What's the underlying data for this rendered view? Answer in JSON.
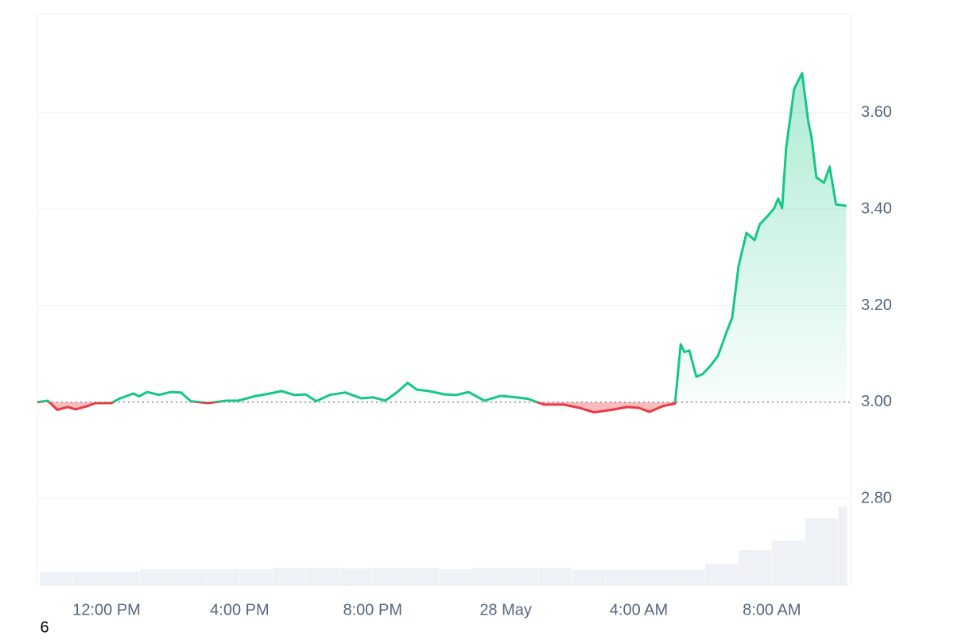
{
  "chart_data": {
    "type": "line",
    "annotation": "6",
    "baseline": 3.0,
    "up_color": "#16c784",
    "down_color": "#ea3943",
    "grid": true,
    "x": [
      -2.08,
      -1.77,
      -1.48,
      -1.17,
      -0.93,
      -0.57,
      -0.33,
      0.14,
      0.38,
      0.81,
      0.98,
      1.22,
      1.58,
      1.93,
      2.24,
      2.53,
      3.05,
      3.6,
      3.96,
      4.44,
      4.92,
      5.27,
      5.63,
      5.99,
      6.3,
      6.71,
      7.18,
      7.66,
      8.02,
      8.38,
      8.74,
      9.05,
      9.33,
      9.69,
      10.17,
      10.53,
      10.88,
      11.36,
      11.84,
      12.32,
      12.67,
      13.15,
      13.75,
      14.22,
      14.65,
      15.18,
      15.66,
      16.01,
      16.32,
      16.73,
      17.09,
      17.26,
      17.37,
      17.52,
      17.73,
      17.92,
      18.16,
      18.38,
      18.64,
      18.81,
      19.0,
      19.24,
      19.48,
      19.64,
      19.88,
      20.07,
      20.19,
      20.31,
      20.43,
      20.67,
      20.91,
      21.1,
      21.19,
      21.34,
      21.57,
      21.74,
      21.93,
      22.24
    ],
    "values": [
      3.0,
      3.003,
      2.984,
      2.99,
      2.985,
      2.992,
      2.998,
      2.998,
      3.007,
      3.018,
      3.012,
      3.021,
      3.015,
      3.021,
      3.02,
      3.002,
      2.998,
      3.003,
      3.003,
      3.012,
      3.018,
      3.023,
      3.015,
      3.016,
      3.002,
      3.015,
      3.02,
      3.008,
      3.01,
      3.003,
      3.021,
      3.04,
      3.026,
      3.023,
      3.016,
      3.015,
      3.021,
      3.003,
      3.013,
      3.01,
      3.007,
      2.995,
      2.995,
      2.988,
      2.979,
      2.984,
      2.99,
      2.988,
      2.98,
      2.992,
      2.997,
      3.12,
      3.104,
      3.107,
      3.053,
      3.058,
      3.076,
      3.096,
      3.145,
      3.175,
      3.282,
      3.351,
      3.336,
      3.369,
      3.386,
      3.402,
      3.422,
      3.402,
      3.526,
      3.649,
      3.682,
      3.579,
      3.551,
      3.466,
      3.455,
      3.488,
      3.41,
      3.407
    ],
    "volume": {
      "color": "#eef1f5",
      "x": [
        -2,
        -1,
        0,
        1,
        2,
        3,
        4,
        5,
        6,
        7,
        8,
        9,
        10,
        11,
        12,
        13,
        14,
        15,
        16,
        17,
        18,
        19,
        20,
        21,
        22
      ],
      "values": [
        18,
        18,
        18,
        21,
        21,
        21,
        21,
        23,
        23,
        22,
        23,
        23,
        21,
        23,
        23,
        23,
        20,
        20,
        20,
        20,
        28,
        45,
        57,
        85,
        100
      ]
    },
    "xlim": [
      -2.08,
      22.37
    ],
    "xticks": [
      {
        "value": 0,
        "label": "12:00 PM"
      },
      {
        "value": 4,
        "label": "4:00 PM"
      },
      {
        "value": 8,
        "label": "8:00 PM"
      },
      {
        "value": 12,
        "label": "28 May"
      },
      {
        "value": 16,
        "label": "4:00 AM"
      },
      {
        "value": 20,
        "label": "8:00 AM"
      }
    ],
    "ylim": [
      2.619,
      3.804
    ],
    "yticks": [
      {
        "value": 2.8,
        "label": "2.80"
      },
      {
        "value": 3.0,
        "label": "3.00"
      },
      {
        "value": 3.2,
        "label": "3.20"
      },
      {
        "value": 3.4,
        "label": "3.40"
      },
      {
        "value": 3.6,
        "label": "3.60"
      }
    ]
  }
}
